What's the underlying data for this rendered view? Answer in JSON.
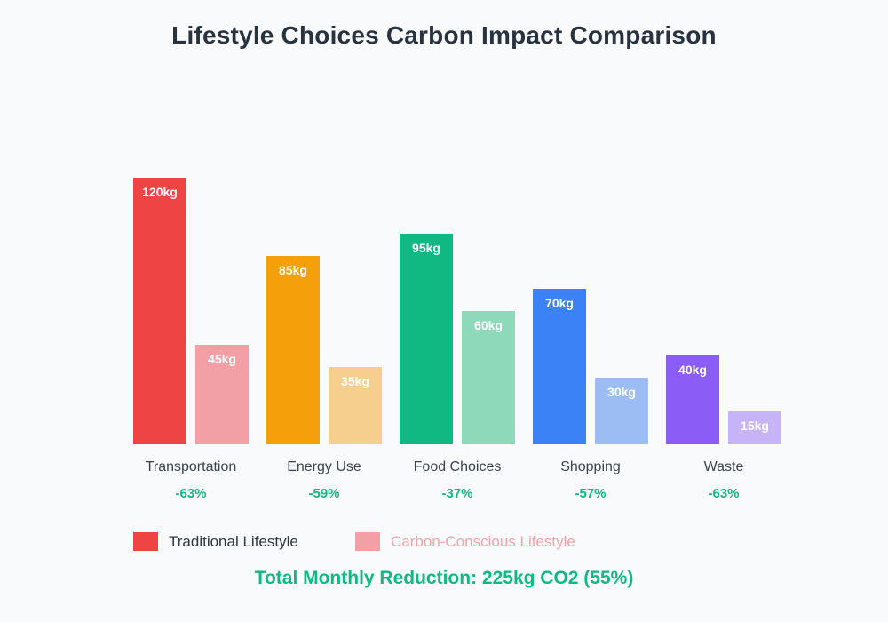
{
  "page": {
    "background": "#f8fafc",
    "summary": "Total Monthly Reduction: 225kg CO2 (55%)"
  },
  "legend": {
    "items": [
      {
        "label": "Traditional Lifestyle",
        "swatch": "#ee4444",
        "text_color": "#2e3642"
      },
      {
        "label": "Carbon-Conscious Lifestyle",
        "swatch": "#f2a0a5",
        "text_color": "#f4a1a6"
      }
    ]
  },
  "chart_data": {
    "type": "bar",
    "title": "Lifestyle Choices Carbon Impact Comparison",
    "categories": [
      "Transportation",
      "Energy Use",
      "Food Choices",
      "Shopping",
      "Waste"
    ],
    "series": [
      {
        "name": "Traditional Lifestyle",
        "values": [
          120,
          85,
          95,
          70,
          40
        ],
        "labels": [
          "120kg",
          "85kg",
          "95kg",
          "70kg",
          "40kg"
        ]
      },
      {
        "name": "Carbon-Conscious Lifestyle",
        "values": [
          45,
          35,
          60,
          30,
          15
        ],
        "labels": [
          "45kg",
          "35kg",
          "60kg",
          "30kg",
          "15kg"
        ]
      }
    ],
    "unit": "kg",
    "reductions": [
      "-63%",
      "-59%",
      "-37%",
      "-57%",
      "-63%"
    ],
    "xlabel": "",
    "ylabel": "",
    "ylim": [
      0,
      120
    ],
    "grid": false,
    "legend_position": "bottom",
    "bar_colors": {
      "traditional": [
        "#ee4444",
        "#f5a00b",
        "#10b981",
        "#3b82f6",
        "#8b5cf6"
      ],
      "conscious": [
        "#f2a0a5",
        "#f6cf8e",
        "#8fd9bb",
        "#9cbdf4",
        "#c7b3f7"
      ]
    },
    "value_label_color": "#ffffff",
    "category_label_color": "#3a4350",
    "reduction_label_color": "#10b981"
  }
}
